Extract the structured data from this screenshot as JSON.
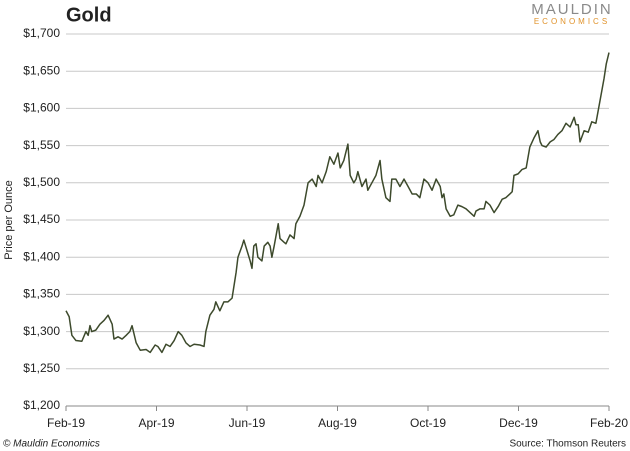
{
  "chart_data": {
    "type": "line",
    "title": "Gold",
    "ylabel": "Price per Ounce",
    "brand": {
      "top": "MAULDIN",
      "bottom": "ECONOMICS"
    },
    "footer": "© Mauldin Economics",
    "source": "Source: Thomson Reuters",
    "xlim": [
      0,
      12
    ],
    "xticks": [
      {
        "value": 0,
        "label": "Feb-19"
      },
      {
        "value": 2,
        "label": "Apr-19"
      },
      {
        "value": 4,
        "label": "Jun-19"
      },
      {
        "value": 6,
        "label": "Aug-19"
      },
      {
        "value": 8,
        "label": "Oct-19"
      },
      {
        "value": 10,
        "label": "Dec-19"
      },
      {
        "value": 12,
        "label": "Feb-20"
      }
    ],
    "ylim": [
      1200,
      1700
    ],
    "yticks": [
      {
        "value": 1200,
        "label": "$1,200"
      },
      {
        "value": 1250,
        "label": "$1,250"
      },
      {
        "value": 1300,
        "label": "$1,300"
      },
      {
        "value": 1350,
        "label": "$1,350"
      },
      {
        "value": 1400,
        "label": "$1,400"
      },
      {
        "value": 1450,
        "label": "$1,450"
      },
      {
        "value": 1500,
        "label": "$1,500"
      },
      {
        "value": 1550,
        "label": "$1,550"
      },
      {
        "value": 1600,
        "label": "$1,600"
      },
      {
        "value": 1650,
        "label": "$1,650"
      },
      {
        "value": 1700,
        "label": "$1,700"
      }
    ],
    "grid": true,
    "series": [
      {
        "name": "Gold",
        "color": "#3d4a2c",
        "x": [
          0,
          0.07,
          0.13,
          0.22,
          0.35,
          0.44,
          0.49,
          0.53,
          0.57,
          0.66,
          0.75,
          0.84,
          0.93,
          1.02,
          1.06,
          1.15,
          1.24,
          1.33,
          1.41,
          1.46,
          1.55,
          1.64,
          1.77,
          1.86,
          1.97,
          2.03,
          2.12,
          2.21,
          2.3,
          2.39,
          2.48,
          2.56,
          2.65,
          2.74,
          2.83,
          2.96,
          3.05,
          3.09,
          3.18,
          3.27,
          3.31,
          3.4,
          3.49,
          3.58,
          3.67,
          3.76,
          3.8,
          3.89,
          3.93,
          4.02,
          4.07,
          4.11,
          4.15,
          4.2,
          4.24,
          4.33,
          4.38,
          4.46,
          4.51,
          4.55,
          4.6,
          4.69,
          4.73,
          4.82,
          4.86,
          4.95,
          5.04,
          5.08,
          5.17,
          5.26,
          5.35,
          5.44,
          5.53,
          5.57,
          5.66,
          5.75,
          5.83,
          5.92,
          6.01,
          6.06,
          6.14,
          6.23,
          6.28,
          6.36,
          6.41,
          6.45,
          6.54,
          6.63,
          6.67,
          6.76,
          6.85,
          6.94,
          6.98,
          7.07,
          7.16,
          7.2,
          7.29,
          7.38,
          7.47,
          7.56,
          7.65,
          7.74,
          7.82,
          7.91,
          8.0,
          8.09,
          8.18,
          8.27,
          8.31,
          8.35,
          8.4,
          8.49,
          8.57,
          8.66,
          8.75,
          8.84,
          8.93,
          9.02,
          9.06,
          9.15,
          9.24,
          9.28,
          9.37,
          9.46,
          9.55,
          9.64,
          9.72,
          9.81,
          9.86,
          9.9,
          9.99,
          10.08,
          10.17,
          10.25,
          10.34,
          10.43,
          10.48,
          10.52,
          10.61,
          10.7,
          10.78,
          10.87,
          10.96,
          11.05,
          11.14,
          11.23,
          11.27,
          11.32,
          11.36,
          11.45,
          11.54,
          11.62,
          11.71,
          11.8,
          11.89,
          11.94,
          12.0
        ],
        "values": [
          1328,
          1320,
          1295,
          1288,
          1287,
          1300,
          1295,
          1308,
          1300,
          1302,
          1310,
          1315,
          1322,
          1310,
          1290,
          1293,
          1290,
          1295,
          1300,
          1308,
          1285,
          1275,
          1276,
          1272,
          1282,
          1280,
          1272,
          1283,
          1280,
          1288,
          1300,
          1295,
          1285,
          1280,
          1283,
          1282,
          1280,
          1300,
          1322,
          1330,
          1340,
          1328,
          1340,
          1340,
          1345,
          1380,
          1400,
          1415,
          1423,
          1405,
          1395,
          1385,
          1415,
          1418,
          1400,
          1395,
          1415,
          1420,
          1415,
          1400,
          1415,
          1445,
          1425,
          1420,
          1418,
          1430,
          1425,
          1445,
          1455,
          1470,
          1500,
          1505,
          1495,
          1510,
          1500,
          1515,
          1535,
          1525,
          1540,
          1520,
          1530,
          1552,
          1510,
          1500,
          1505,
          1515,
          1495,
          1505,
          1490,
          1500,
          1510,
          1530,
          1505,
          1480,
          1475,
          1505,
          1505,
          1495,
          1505,
          1495,
          1485,
          1485,
          1480,
          1505,
          1500,
          1490,
          1505,
          1495,
          1480,
          1485,
          1465,
          1455,
          1457,
          1470,
          1468,
          1465,
          1460,
          1455,
          1462,
          1465,
          1465,
          1475,
          1470,
          1460,
          1468,
          1478,
          1480,
          1485,
          1488,
          1510,
          1512,
          1518,
          1520,
          1548,
          1560,
          1570,
          1555,
          1550,
          1548,
          1555,
          1558,
          1565,
          1570,
          1580,
          1575,
          1588,
          1578,
          1578,
          1555,
          1570,
          1568,
          1582,
          1580,
          1610,
          1640,
          1660,
          1675
        ]
      }
    ]
  }
}
